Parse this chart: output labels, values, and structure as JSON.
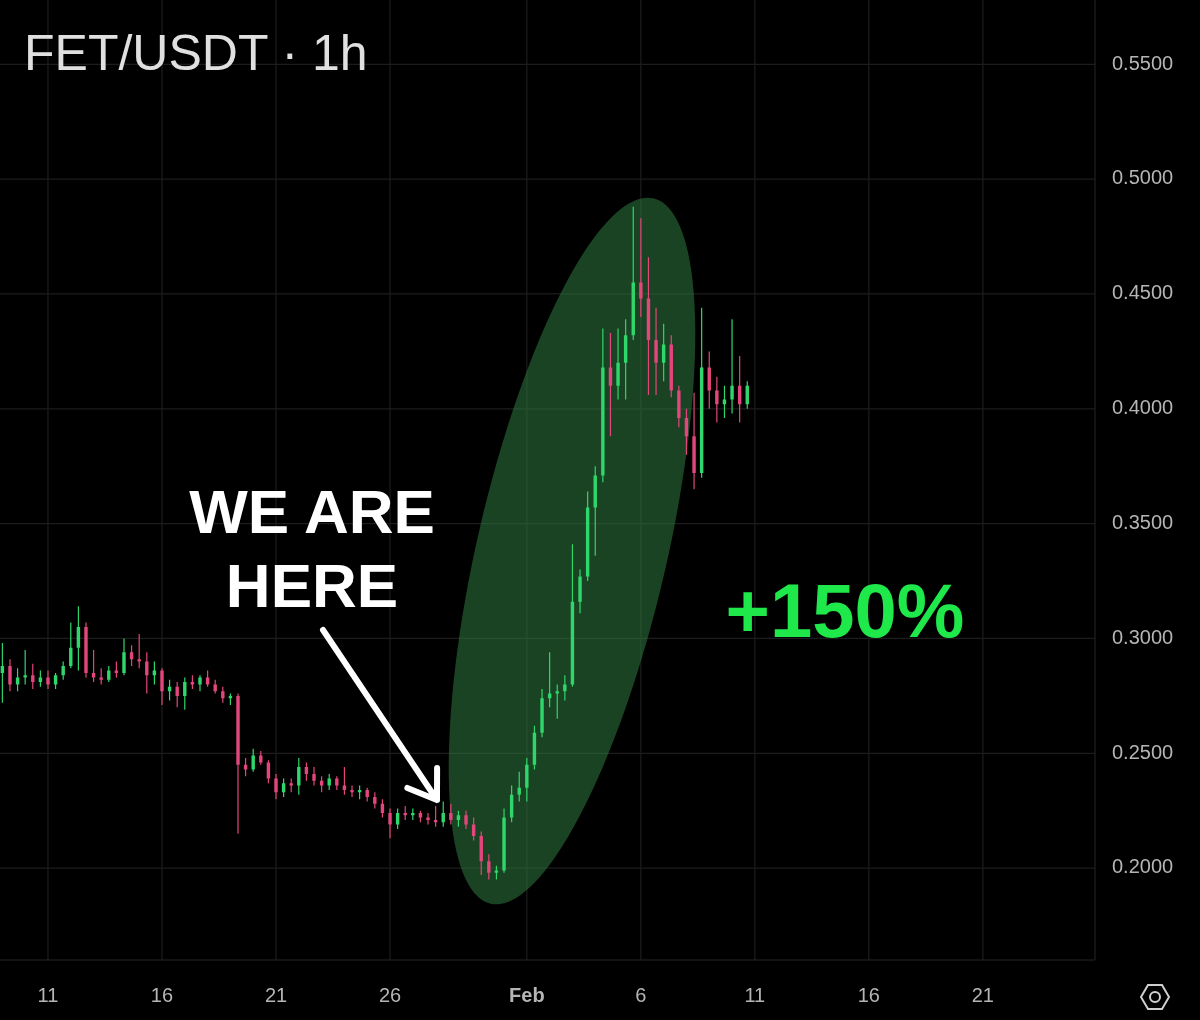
{
  "chart_data": {
    "type": "candlestick",
    "title": "FET/USDT · 1h",
    "x": [
      "--01-09T00:00",
      "--01-09T08:00",
      "--01-09T16:00",
      "--01-10T00:00",
      "--01-10T08:00",
      "--01-10T16:00",
      "--01-11T00:00",
      "--01-11T08:00",
      "--01-11T16:00",
      "--01-12T00:00",
      "--01-12T08:00",
      "--01-12T16:00",
      "--01-13T00:00",
      "--01-13T08:00",
      "--01-13T16:00",
      "--01-14T00:00",
      "--01-14T08:00",
      "--01-14T16:00",
      "--01-15T00:00",
      "--01-15T08:00",
      "--01-15T16:00",
      "--01-16T00:00",
      "--01-16T08:00",
      "--01-16T16:00",
      "--01-17T00:00",
      "--01-17T08:00",
      "--01-17T16:00",
      "--01-18T00:00",
      "--01-18T08:00",
      "--01-18T16:00",
      "--01-19T00:00",
      "--01-19T08:00",
      "--01-19T16:00",
      "--01-20T00:00",
      "--01-20T08:00",
      "--01-20T16:00",
      "--01-21T00:00",
      "--01-21T08:00",
      "--01-21T16:00",
      "--01-22T00:00",
      "--01-22T08:00",
      "--01-22T16:00",
      "--01-23T00:00",
      "--01-23T08:00",
      "--01-23T16:00",
      "--01-24T00:00",
      "--01-24T08:00",
      "--01-24T16:00",
      "--01-25T00:00",
      "--01-25T08:00",
      "--01-25T16:00",
      "--01-26T00:00",
      "--01-26T08:00",
      "--01-26T16:00",
      "--01-27T00:00",
      "--01-27T08:00",
      "--01-27T16:00",
      "--01-28T00:00",
      "--01-28T08:00",
      "--01-28T16:00",
      "--01-29T00:00",
      "--01-29T08:00",
      "--01-29T16:00",
      "--01-30T00:00",
      "--01-30T08:00",
      "--01-30T16:00",
      "--01-31T00:00",
      "--01-31T08:00",
      "--01-31T16:00",
      "--02-01T00:00",
      "--02-01T08:00",
      "--02-01T16:00",
      "--02-02T00:00",
      "--02-02T08:00",
      "--02-02T16:00",
      "--02-03T00:00",
      "--02-03T08:00",
      "--02-03T16:00",
      "--02-04T00:00",
      "--02-04T08:00",
      "--02-04T16:00",
      "--02-05T00:00",
      "--02-05T08:00",
      "--02-05T16:00",
      "--02-06T00:00",
      "--02-06T08:00",
      "--02-06T16:00",
      "--02-07T00:00",
      "--02-07T08:00",
      "--02-07T16:00",
      "--02-08T00:00",
      "--02-08T08:00",
      "--02-08T16:00",
      "--02-09T00:00",
      "--02-09T08:00",
      "--02-09T16:00",
      "--02-10T00:00",
      "--02-10T08:00",
      "--02-10T16:00"
    ],
    "ohlc": [
      [
        0.285,
        0.298,
        0.272,
        0.288
      ],
      [
        0.288,
        0.291,
        0.277,
        0.28
      ],
      [
        0.28,
        0.287,
        0.277,
        0.283
      ],
      [
        0.283,
        0.295,
        0.28,
        0.284
      ],
      [
        0.284,
        0.289,
        0.278,
        0.281
      ],
      [
        0.281,
        0.286,
        0.279,
        0.283
      ],
      [
        0.283,
        0.286,
        0.278,
        0.28
      ],
      [
        0.28,
        0.285,
        0.278,
        0.284
      ],
      [
        0.284,
        0.29,
        0.282,
        0.288
      ],
      [
        0.288,
        0.307,
        0.287,
        0.296
      ],
      [
        0.296,
        0.314,
        0.286,
        0.305
      ],
      [
        0.305,
        0.307,
        0.283,
        0.285
      ],
      [
        0.285,
        0.295,
        0.281,
        0.283
      ],
      [
        0.283,
        0.287,
        0.28,
        0.282
      ],
      [
        0.282,
        0.288,
        0.281,
        0.286
      ],
      [
        0.286,
        0.29,
        0.283,
        0.285
      ],
      [
        0.285,
        0.3,
        0.284,
        0.294
      ],
      [
        0.294,
        0.297,
        0.288,
        0.291
      ],
      [
        0.291,
        0.302,
        0.287,
        0.29
      ],
      [
        0.29,
        0.294,
        0.276,
        0.284
      ],
      [
        0.284,
        0.29,
        0.28,
        0.286
      ],
      [
        0.286,
        0.287,
        0.271,
        0.277
      ],
      [
        0.277,
        0.282,
        0.273,
        0.279
      ],
      [
        0.279,
        0.281,
        0.27,
        0.275
      ],
      [
        0.275,
        0.283,
        0.269,
        0.281
      ],
      [
        0.281,
        0.284,
        0.278,
        0.28
      ],
      [
        0.28,
        0.284,
        0.277,
        0.283
      ],
      [
        0.283,
        0.286,
        0.279,
        0.28
      ],
      [
        0.28,
        0.282,
        0.276,
        0.277
      ],
      [
        0.277,
        0.279,
        0.272,
        0.274
      ],
      [
        0.274,
        0.276,
        0.271,
        0.275
      ],
      [
        0.275,
        0.276,
        0.215,
        0.245
      ],
      [
        0.245,
        0.248,
        0.24,
        0.243
      ],
      [
        0.243,
        0.252,
        0.242,
        0.249
      ],
      [
        0.249,
        0.251,
        0.245,
        0.246
      ],
      [
        0.246,
        0.247,
        0.237,
        0.239
      ],
      [
        0.239,
        0.241,
        0.23,
        0.233
      ],
      [
        0.233,
        0.239,
        0.231,
        0.237
      ],
      [
        0.237,
        0.239,
        0.233,
        0.236
      ],
      [
        0.236,
        0.248,
        0.232,
        0.244
      ],
      [
        0.244,
        0.246,
        0.238,
        0.241
      ],
      [
        0.241,
        0.244,
        0.236,
        0.238
      ],
      [
        0.238,
        0.24,
        0.233,
        0.236
      ],
      [
        0.236,
        0.241,
        0.234,
        0.239
      ],
      [
        0.239,
        0.24,
        0.234,
        0.236
      ],
      [
        0.236,
        0.244,
        0.232,
        0.234
      ],
      [
        0.234,
        0.236,
        0.231,
        0.233
      ],
      [
        0.233,
        0.236,
        0.23,
        0.234
      ],
      [
        0.234,
        0.235,
        0.229,
        0.231
      ],
      [
        0.231,
        0.233,
        0.226,
        0.228
      ],
      [
        0.228,
        0.23,
        0.222,
        0.224
      ],
      [
        0.224,
        0.226,
        0.213,
        0.219
      ],
      [
        0.219,
        0.226,
        0.217,
        0.224
      ],
      [
        0.224,
        0.227,
        0.221,
        0.223
      ],
      [
        0.223,
        0.226,
        0.221,
        0.224
      ],
      [
        0.224,
        0.225,
        0.22,
        0.222
      ],
      [
        0.222,
        0.224,
        0.219,
        0.221
      ],
      [
        0.221,
        0.227,
        0.218,
        0.22
      ],
      [
        0.22,
        0.229,
        0.218,
        0.224
      ],
      [
        0.224,
        0.228,
        0.219,
        0.221
      ],
      [
        0.221,
        0.225,
        0.218,
        0.223
      ],
      [
        0.223,
        0.225,
        0.217,
        0.219
      ],
      [
        0.219,
        0.222,
        0.212,
        0.214
      ],
      [
        0.214,
        0.216,
        0.197,
        0.203
      ],
      [
        0.203,
        0.206,
        0.195,
        0.198
      ],
      [
        0.198,
        0.201,
        0.195,
        0.199
      ],
      [
        0.199,
        0.226,
        0.198,
        0.222
      ],
      [
        0.222,
        0.236,
        0.22,
        0.232
      ],
      [
        0.232,
        0.242,
        0.229,
        0.235
      ],
      [
        0.235,
        0.248,
        0.229,
        0.245
      ],
      [
        0.245,
        0.262,
        0.243,
        0.259
      ],
      [
        0.259,
        0.278,
        0.257,
        0.274
      ],
      [
        0.274,
        0.294,
        0.27,
        0.276
      ],
      [
        0.276,
        0.28,
        0.265,
        0.277
      ],
      [
        0.277,
        0.284,
        0.273,
        0.28
      ],
      [
        0.28,
        0.341,
        0.279,
        0.316
      ],
      [
        0.316,
        0.33,
        0.311,
        0.327
      ],
      [
        0.327,
        0.364,
        0.325,
        0.357
      ],
      [
        0.357,
        0.375,
        0.336,
        0.371
      ],
      [
        0.371,
        0.435,
        0.368,
        0.418
      ],
      [
        0.418,
        0.433,
        0.388,
        0.41
      ],
      [
        0.41,
        0.435,
        0.404,
        0.42
      ],
      [
        0.42,
        0.439,
        0.404,
        0.432
      ],
      [
        0.432,
        0.488,
        0.43,
        0.455
      ],
      [
        0.455,
        0.483,
        0.44,
        0.448
      ],
      [
        0.448,
        0.466,
        0.406,
        0.43
      ],
      [
        0.43,
        0.444,
        0.406,
        0.42
      ],
      [
        0.42,
        0.437,
        0.412,
        0.428
      ],
      [
        0.428,
        0.432,
        0.405,
        0.408
      ],
      [
        0.408,
        0.41,
        0.392,
        0.396
      ],
      [
        0.396,
        0.4,
        0.38,
        0.388
      ],
      [
        0.388,
        0.407,
        0.365,
        0.372
      ],
      [
        0.372,
        0.444,
        0.37,
        0.418
      ],
      [
        0.418,
        0.425,
        0.4,
        0.408
      ],
      [
        0.408,
        0.414,
        0.394,
        0.402
      ],
      [
        0.402,
        0.41,
        0.396,
        0.404
      ],
      [
        0.404,
        0.439,
        0.398,
        0.41
      ],
      [
        0.41,
        0.423,
        0.394,
        0.402
      ],
      [
        0.402,
        0.412,
        0.4,
        0.41
      ]
    ],
    "colors": [
      "#2fd66b",
      "#e2467c",
      "#2fd66b",
      "#2fd66b",
      "#e2467c",
      "#2fd66b",
      "#e2467c",
      "#2fd66b",
      "#2fd66b",
      "#2fd66b",
      "#2fd66b",
      "#e2467c",
      "#e2467c",
      "#e2467c",
      "#2fd66b",
      "#e2467c",
      "#2fd66b",
      "#e2467c",
      "#e2467c",
      "#e2467c",
      "#2fd66b",
      "#e2467c",
      "#2fd66b",
      "#e2467c",
      "#2fd66b",
      "#e2467c",
      "#2fd66b",
      "#e2467c",
      "#e2467c",
      "#e2467c",
      "#2fd66b",
      "#e2467c",
      "#e2467c",
      "#2fd66b",
      "#e2467c",
      "#e2467c",
      "#e2467c",
      "#2fd66b",
      "#e2467c",
      "#2fd66b",
      "#e2467c",
      "#e2467c",
      "#e2467c",
      "#2fd66b",
      "#e2467c",
      "#e2467c",
      "#e2467c",
      "#2fd66b",
      "#e2467c",
      "#e2467c",
      "#e2467c",
      "#e2467c",
      "#2fd66b",
      "#e2467c",
      "#2fd66b",
      "#e2467c",
      "#e2467c",
      "#e2467c",
      "#2fd66b",
      "#e2467c",
      "#2fd66b",
      "#e2467c",
      "#e2467c",
      "#e2467c",
      "#e2467c",
      "#2fd66b",
      "#2fd66b",
      "#2fd66b",
      "#2fd66b",
      "#2fd66b",
      "#2fd66b",
      "#2fd66b",
      "#2fd66b",
      "#2fd66b",
      "#2fd66b",
      "#2fd66b",
      "#2fd66b",
      "#2fd66b",
      "#2fd66b",
      "#2fd66b",
      "#e2467c",
      "#2fd66b",
      "#2fd66b",
      "#2fd66b",
      "#e2467c",
      "#e2467c",
      "#e2467c",
      "#2fd66b",
      "#e2467c",
      "#e2467c",
      "#e2467c",
      "#e2467c",
      "#2fd66b",
      "#e2467c",
      "#e2467c",
      "#2fd66b",
      "#2fd66b",
      "#e2467c",
      "#2fd66b"
    ],
    "xlim": [
      "--01-08T21:30",
      "--02-25T22:00"
    ],
    "ylim": [
      0.16,
      0.578
    ],
    "xticks": [
      {
        "value": "--01-11",
        "label": "11"
      },
      {
        "value": "--01-16",
        "label": "16"
      },
      {
        "value": "--01-21",
        "label": "21"
      },
      {
        "value": "--01-26",
        "label": "26"
      },
      {
        "value": "--02-01",
        "label": "Feb"
      },
      {
        "value": "--02-06",
        "label": "6"
      },
      {
        "value": "--02-11",
        "label": "11"
      },
      {
        "value": "--02-16",
        "label": "16"
      },
      {
        "value": "--02-21",
        "label": "21"
      }
    ],
    "yticks": [
      {
        "value": 0.2,
        "label": "0.2000"
      },
      {
        "value": 0.25,
        "label": "0.2500"
      },
      {
        "value": 0.3,
        "label": "0.3000"
      },
      {
        "value": 0.35,
        "label": "0.3500"
      },
      {
        "value": 0.4,
        "label": "0.4000"
      },
      {
        "value": 0.45,
        "label": "0.4500"
      },
      {
        "value": 0.5,
        "label": "0.5000"
      },
      {
        "value": 0.55,
        "label": "0.5500"
      }
    ],
    "grid": true,
    "annotations": [
      "WE ARE HERE",
      "+150%"
    ]
  }
}
